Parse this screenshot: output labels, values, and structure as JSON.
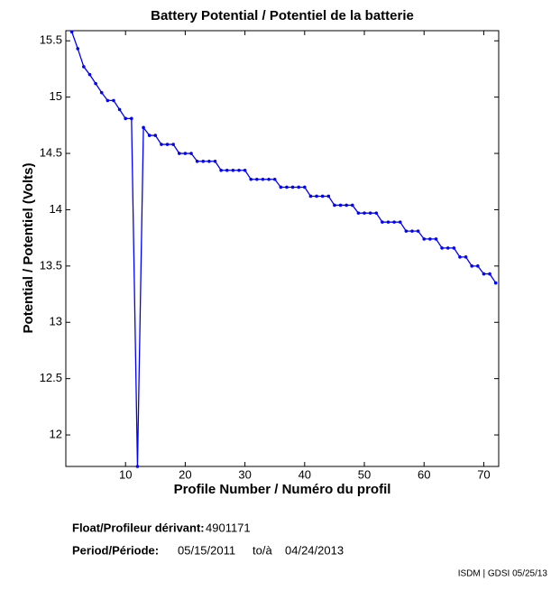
{
  "chart_data": {
    "type": "line",
    "title": "Battery Potential / Potentiel de la batterie",
    "xlabel": "Profile Number / Numéro du profil",
    "ylabel": "Potential / Potentiel (Volts)",
    "x": [
      1,
      2,
      3,
      4,
      5,
      6,
      7,
      8,
      9,
      10,
      11,
      12,
      13,
      14,
      15,
      16,
      17,
      18,
      19,
      20,
      21,
      22,
      23,
      24,
      25,
      26,
      27,
      28,
      29,
      30,
      31,
      32,
      33,
      34,
      35,
      36,
      37,
      38,
      39,
      40,
      41,
      42,
      43,
      44,
      45,
      46,
      47,
      48,
      49,
      50,
      51,
      52,
      53,
      54,
      55,
      56,
      57,
      58,
      59,
      60,
      61,
      62,
      63,
      64,
      65,
      66,
      67,
      68,
      69,
      70,
      71,
      72
    ],
    "values": [
      15.58,
      15.43,
      15.27,
      15.2,
      15.12,
      15.04,
      14.97,
      14.97,
      14.89,
      14.81,
      14.81,
      11.72,
      14.73,
      14.66,
      14.66,
      14.58,
      14.58,
      14.58,
      14.5,
      14.5,
      14.5,
      14.43,
      14.43,
      14.43,
      14.43,
      14.35,
      14.35,
      14.35,
      14.35,
      14.35,
      14.27,
      14.27,
      14.27,
      14.27,
      14.27,
      14.2,
      14.2,
      14.2,
      14.2,
      14.2,
      14.12,
      14.12,
      14.12,
      14.12,
      14.04,
      14.04,
      14.04,
      14.04,
      13.97,
      13.97,
      13.97,
      13.97,
      13.89,
      13.89,
      13.89,
      13.89,
      13.81,
      13.81,
      13.81,
      13.74,
      13.74,
      13.74,
      13.66,
      13.66,
      13.66,
      13.58,
      13.58,
      13.5,
      13.5,
      13.43,
      13.43,
      13.35
    ],
    "color": "#0000ff",
    "xlim": [
      0,
      72.5
    ],
    "ylim": [
      11.72,
      15.59
    ],
    "xticks": [
      10,
      20,
      30,
      40,
      50,
      60,
      70
    ],
    "yticks": [
      12,
      12.5,
      13,
      13.5,
      14,
      14.5,
      15,
      15.5
    ],
    "grid": false
  },
  "info": {
    "float_label": "Float/Profileur dérivant:",
    "float_id": "4901171",
    "period_label": "Period/Période:",
    "start": "05/15/2011",
    "to": "to/à",
    "end": "04/24/2013",
    "footer": "ISDM | GDSI 05/25/13"
  }
}
